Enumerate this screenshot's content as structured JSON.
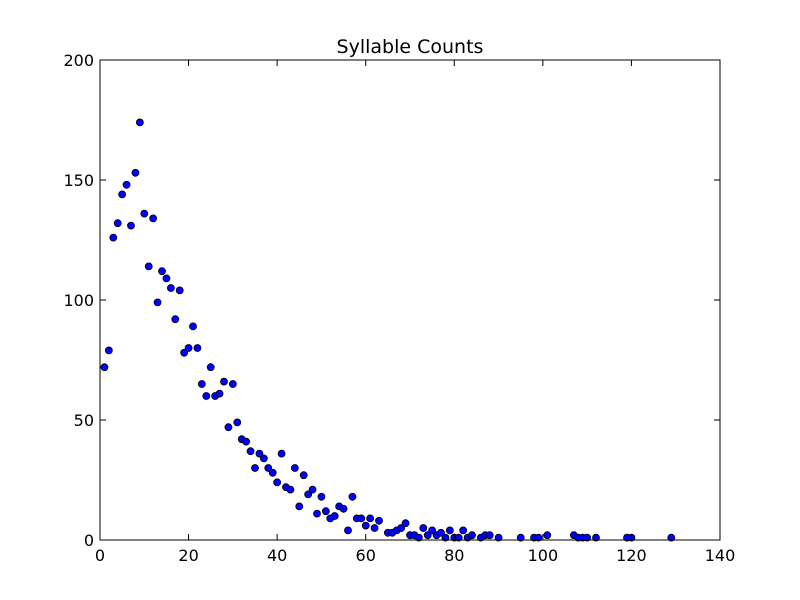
{
  "chart_data": {
    "type": "scatter",
    "title": "Syllable Counts",
    "xlabel": "",
    "ylabel": "",
    "xlim": [
      0,
      140
    ],
    "ylim": [
      0,
      200
    ],
    "xticks": [
      0,
      20,
      40,
      60,
      80,
      100,
      120,
      140
    ],
    "yticks": [
      0,
      50,
      100,
      150,
      200
    ],
    "grid": false,
    "legend": "none",
    "marker_color": "#0000ff",
    "marker_edge_color": "#000000",
    "series": [
      {
        "points": [
          [
            1,
            72
          ],
          [
            2,
            79
          ],
          [
            3,
            126
          ],
          [
            4,
            132
          ],
          [
            5,
            144
          ],
          [
            6,
            148
          ],
          [
            7,
            131
          ],
          [
            8,
            153
          ],
          [
            9,
            174
          ],
          [
            10,
            136
          ],
          [
            11,
            114
          ],
          [
            12,
            134
          ],
          [
            13,
            99
          ],
          [
            14,
            112
          ],
          [
            15,
            109
          ],
          [
            16,
            105
          ],
          [
            17,
            92
          ],
          [
            18,
            104
          ],
          [
            19,
            78
          ],
          [
            20,
            80
          ],
          [
            21,
            89
          ],
          [
            22,
            80
          ],
          [
            23,
            65
          ],
          [
            24,
            60
          ],
          [
            25,
            72
          ],
          [
            26,
            60
          ],
          [
            27,
            61
          ],
          [
            28,
            66
          ],
          [
            29,
            47
          ],
          [
            30,
            65
          ],
          [
            31,
            49
          ],
          [
            32,
            42
          ],
          [
            33,
            41
          ],
          [
            34,
            37
          ],
          [
            35,
            30
          ],
          [
            36,
            36
          ],
          [
            37,
            34
          ],
          [
            38,
            30
          ],
          [
            39,
            28
          ],
          [
            40,
            24
          ],
          [
            41,
            36
          ],
          [
            42,
            22
          ],
          [
            43,
            21
          ],
          [
            44,
            30
          ],
          [
            45,
            14
          ],
          [
            46,
            27
          ],
          [
            47,
            19
          ],
          [
            48,
            21
          ],
          [
            49,
            11
          ],
          [
            50,
            18
          ],
          [
            51,
            12
          ],
          [
            52,
            9
          ],
          [
            53,
            10
          ],
          [
            54,
            14
          ],
          [
            55,
            13
          ],
          [
            56,
            4
          ],
          [
            57,
            18
          ],
          [
            58,
            9
          ],
          [
            59,
            9
          ],
          [
            60,
            6
          ],
          [
            61,
            9
          ],
          [
            62,
            5
          ],
          [
            63,
            8
          ],
          [
            65,
            3
          ],
          [
            66,
            3
          ],
          [
            67,
            4
          ],
          [
            68,
            5
          ],
          [
            69,
            7
          ],
          [
            70,
            2
          ],
          [
            71,
            2
          ],
          [
            72,
            1
          ],
          [
            73,
            5
          ],
          [
            74,
            2
          ],
          [
            75,
            4
          ],
          [
            76,
            2
          ],
          [
            77,
            3
          ],
          [
            78,
            1
          ],
          [
            79,
            4
          ],
          [
            80,
            1
          ],
          [
            81,
            1
          ],
          [
            82,
            4
          ],
          [
            83,
            1
          ],
          [
            84,
            2
          ],
          [
            86,
            1
          ],
          [
            87,
            2
          ],
          [
            88,
            2
          ],
          [
            90,
            1
          ],
          [
            95,
            1
          ],
          [
            98,
            1
          ],
          [
            99,
            1
          ],
          [
            101,
            2
          ],
          [
            107,
            2
          ],
          [
            108,
            1
          ],
          [
            109,
            1
          ],
          [
            110,
            1
          ],
          [
            112,
            1
          ],
          [
            119,
            1
          ],
          [
            120,
            1
          ],
          [
            129,
            1
          ]
        ]
      }
    ]
  }
}
